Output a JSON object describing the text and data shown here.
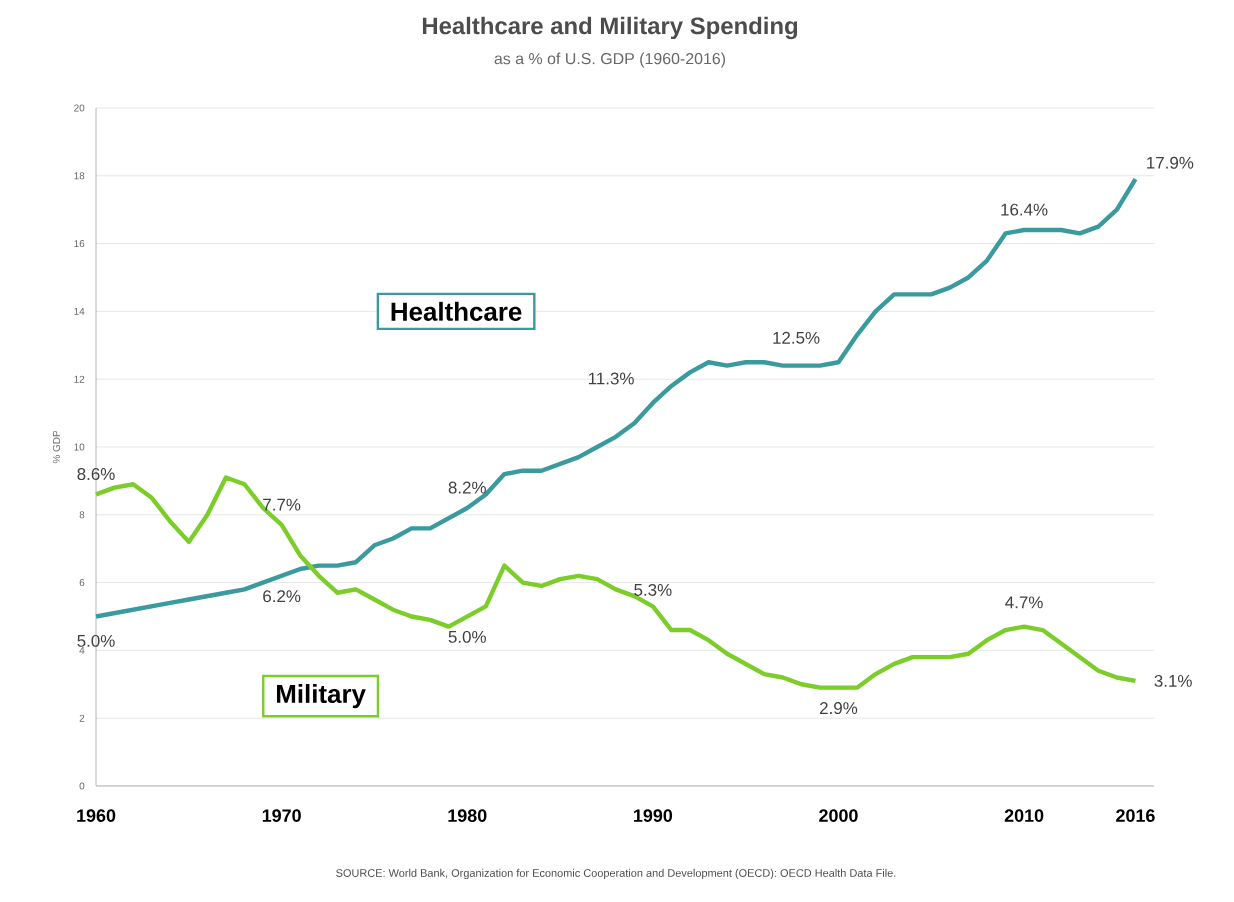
{
  "chart_data": {
    "type": "line",
    "title": "Healthcare and Military Spending",
    "subtitle": "as a % of U.S. GDP (1960-2016)",
    "ylabel": "% GDP",
    "x": [
      1960,
      1961,
      1962,
      1963,
      1964,
      1965,
      1966,
      1967,
      1968,
      1969,
      1970,
      1971,
      1972,
      1973,
      1974,
      1975,
      1976,
      1977,
      1978,
      1979,
      1980,
      1981,
      1982,
      1983,
      1984,
      1985,
      1986,
      1987,
      1988,
      1989,
      1990,
      1991,
      1992,
      1993,
      1994,
      1995,
      1996,
      1997,
      1998,
      1999,
      2000,
      2001,
      2002,
      2003,
      2004,
      2005,
      2006,
      2007,
      2008,
      2009,
      2010,
      2011,
      2012,
      2013,
      2014,
      2015,
      2016
    ],
    "series": [
      {
        "name": "Healthcare",
        "color": "#3a9a9e",
        "values": [
          5.0,
          5.1,
          5.2,
          5.3,
          5.4,
          5.5,
          5.6,
          5.7,
          5.8,
          6.0,
          6.2,
          6.4,
          6.5,
          6.5,
          6.6,
          7.1,
          7.3,
          7.6,
          7.6,
          7.9,
          8.2,
          8.6,
          9.2,
          9.3,
          9.3,
          9.5,
          9.7,
          10.0,
          10.3,
          10.7,
          11.3,
          11.8,
          12.2,
          12.5,
          12.4,
          12.5,
          12.5,
          12.4,
          12.4,
          12.4,
          12.5,
          13.3,
          14.0,
          14.5,
          14.5,
          14.5,
          14.7,
          15.0,
          15.5,
          16.3,
          16.4,
          16.4,
          16.4,
          16.3,
          16.5,
          17.0,
          17.9
        ]
      },
      {
        "name": "Military",
        "color": "#7ccc2a",
        "values": [
          8.6,
          8.8,
          8.9,
          8.5,
          7.8,
          7.2,
          8.0,
          9.1,
          8.9,
          8.2,
          7.7,
          6.8,
          6.2,
          5.7,
          5.8,
          5.5,
          5.2,
          5.0,
          4.9,
          4.7,
          5.0,
          5.3,
          6.5,
          6.0,
          5.9,
          6.1,
          6.2,
          6.1,
          5.8,
          5.6,
          5.3,
          4.6,
          4.6,
          4.3,
          3.9,
          3.6,
          3.3,
          3.2,
          3.0,
          2.9,
          2.9,
          2.9,
          3.3,
          3.6,
          3.8,
          3.8,
          3.8,
          3.9,
          4.3,
          4.6,
          4.7,
          4.6,
          4.2,
          3.8,
          3.4,
          3.2,
          3.1
        ]
      }
    ],
    "xlim": [
      1960,
      2017
    ],
    "ylim": [
      0,
      20
    ],
    "xticks": [
      1960,
      1970,
      1980,
      1990,
      2000,
      2010,
      2016
    ],
    "yticks": [
      0,
      2,
      4,
      6,
      8,
      10,
      12,
      14,
      16,
      18,
      20
    ],
    "grid": "y",
    "annotations": [
      {
        "text": "8.6%",
        "x": 1960,
        "y": 8.6
      },
      {
        "text": "5.0%",
        "x": 1960,
        "y": 5.0
      },
      {
        "text": "7.7%",
        "x": 1970,
        "y": 7.7
      },
      {
        "text": "6.2%",
        "x": 1970,
        "y": 6.2
      },
      {
        "text": "8.2%",
        "x": 1980,
        "y": 8.2
      },
      {
        "text": "5.0%",
        "x": 1980,
        "y": 5.0
      },
      {
        "text": "11.3%",
        "x": 1990,
        "y": 11.3
      },
      {
        "text": "5.3%",
        "x": 1990,
        "y": 5.3
      },
      {
        "text": "12.5%",
        "x": 2000,
        "y": 12.5
      },
      {
        "text": "2.9%",
        "x": 2000,
        "y": 2.9
      },
      {
        "text": "16.4%",
        "x": 2010,
        "y": 16.4
      },
      {
        "text": "4.7%",
        "x": 2010,
        "y": 4.7
      },
      {
        "text": "17.9%",
        "x": 2016,
        "y": 17.9
      },
      {
        "text": "3.1%",
        "x": 2016,
        "y": 3.1
      },
      "SOURCE: World Bank, Organization for Economic Cooperation and Development (OECD): OECD Health Data File."
    ]
  }
}
